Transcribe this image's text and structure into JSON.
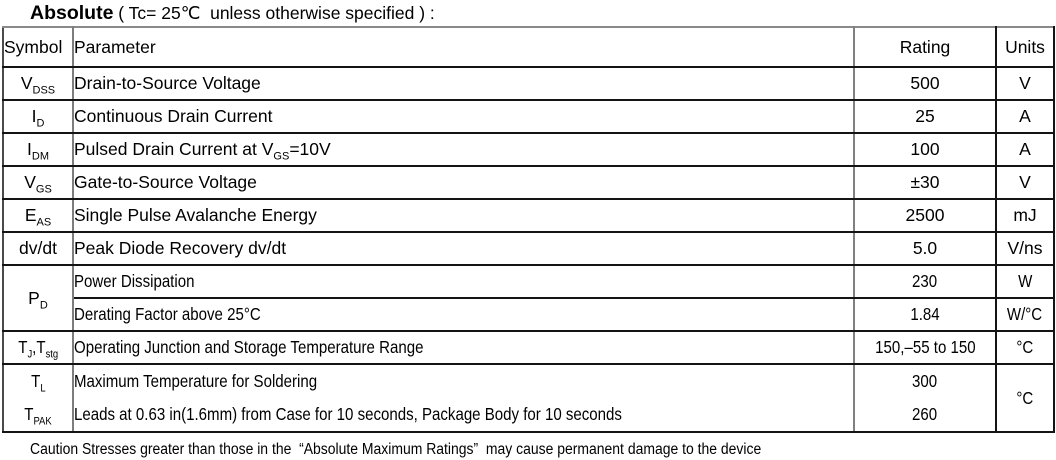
{
  "title": {
    "bold": "Absolute",
    "rest": " ( Tc= 25℃  unless otherwise specified ) :"
  },
  "table": {
    "headers": {
      "symbol": "Symbol",
      "parameter": "Parameter",
      "rating": "Rating",
      "units": "Units"
    },
    "rows": {
      "vdss": {
        "sym": "V",
        "sub": "DSS",
        "param": "Drain-to-Source Voltage",
        "rating": "500",
        "unit": "V"
      },
      "id": {
        "sym": "I",
        "sub": "D",
        "param": "Continuous Drain Current",
        "rating": "25",
        "unit": "A"
      },
      "idm": {
        "sym": "I",
        "sub": "DM",
        "param_pre": "Pulsed Drain Current at V",
        "param_sub": "GS",
        "param_post": "=10V",
        "rating": "100",
        "unit": "A"
      },
      "vgs": {
        "sym": "V",
        "sub": "GS",
        "param": "Gate-to-Source Voltage",
        "rating": "±30",
        "unit": "V"
      },
      "eas": {
        "sym": "E",
        "sub": "AS",
        "param": "Single Pulse Avalanche Energy",
        "rating": "2500",
        "unit": "mJ"
      },
      "dvdt": {
        "sym": "dv/dt",
        "param": "Peak Diode Recovery dv/dt",
        "rating": "5.0",
        "unit": "V/ns"
      },
      "pd": {
        "sym": "P",
        "sub": "D",
        "p1": "Power Dissipation",
        "r1": "230",
        "u1": "W",
        "p2": "Derating Factor above 25°C",
        "r2": "1.84",
        "u2": "W/°C"
      },
      "tj": {
        "sym1": "T",
        "sub1": "J",
        "sym2": ",T",
        "sub2": "stg",
        "param": "Operating Junction and Storage Temperature Range",
        "rating": "150,–55 to 150",
        "unit": "°C"
      },
      "tsolder": {
        "sym1": "T",
        "sub1": "L",
        "param1": "Maximum Temperature for Soldering",
        "rating1": "300",
        "sym2": "T",
        "sub2": "PAK",
        "param2": "Leads at 0.63 in(1.6mm) from Case for 10 seconds, Package Body for 10 seconds",
        "rating2": "260",
        "unit": "°C"
      }
    }
  },
  "footer": "Caution Stresses greater than those in the  “Absolute Maximum Ratings”  may cause permanent damage to the device"
}
